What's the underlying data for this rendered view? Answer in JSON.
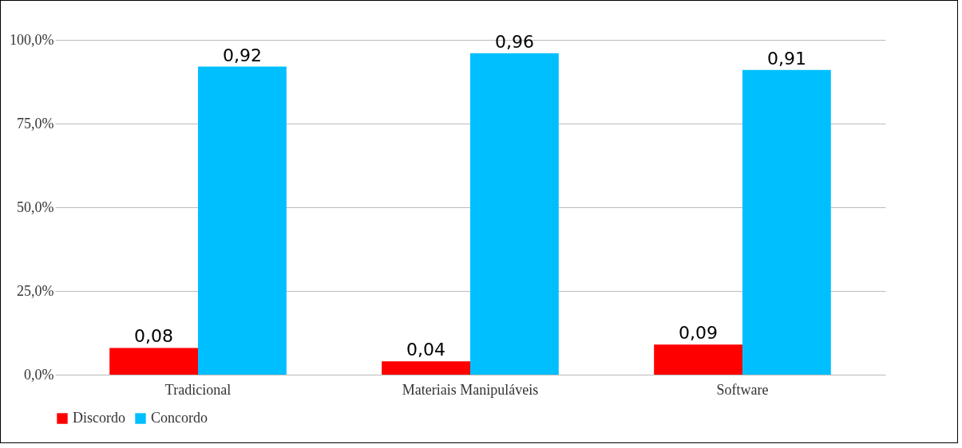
{
  "chart_data": {
    "type": "bar",
    "categories": [
      "Tradicional",
      "Materiais Manipuláveis",
      "Software"
    ],
    "series": [
      {
        "name": "Discordo",
        "color": "#ff0000",
        "values": [
          0.08,
          0.04,
          0.09
        ],
        "value_labels": [
          "0,08",
          "0,04",
          "0,09"
        ]
      },
      {
        "name": "Concordo",
        "color": "#00bfff",
        "values": [
          0.92,
          0.96,
          0.91
        ],
        "value_labels": [
          "0,92",
          "0,96",
          "0,91"
        ]
      }
    ],
    "ylim": [
      0,
      1
    ],
    "yticks": [
      {
        "value": 0,
        "label": "0,0%"
      },
      {
        "value": 0.25,
        "label": "25,0%"
      },
      {
        "value": 0.5,
        "label": "50,0%"
      },
      {
        "value": 0.75,
        "label": "75,0%"
      },
      {
        "value": 1,
        "label": "100,0%"
      }
    ],
    "grid": "y",
    "legend": "bottom"
  }
}
